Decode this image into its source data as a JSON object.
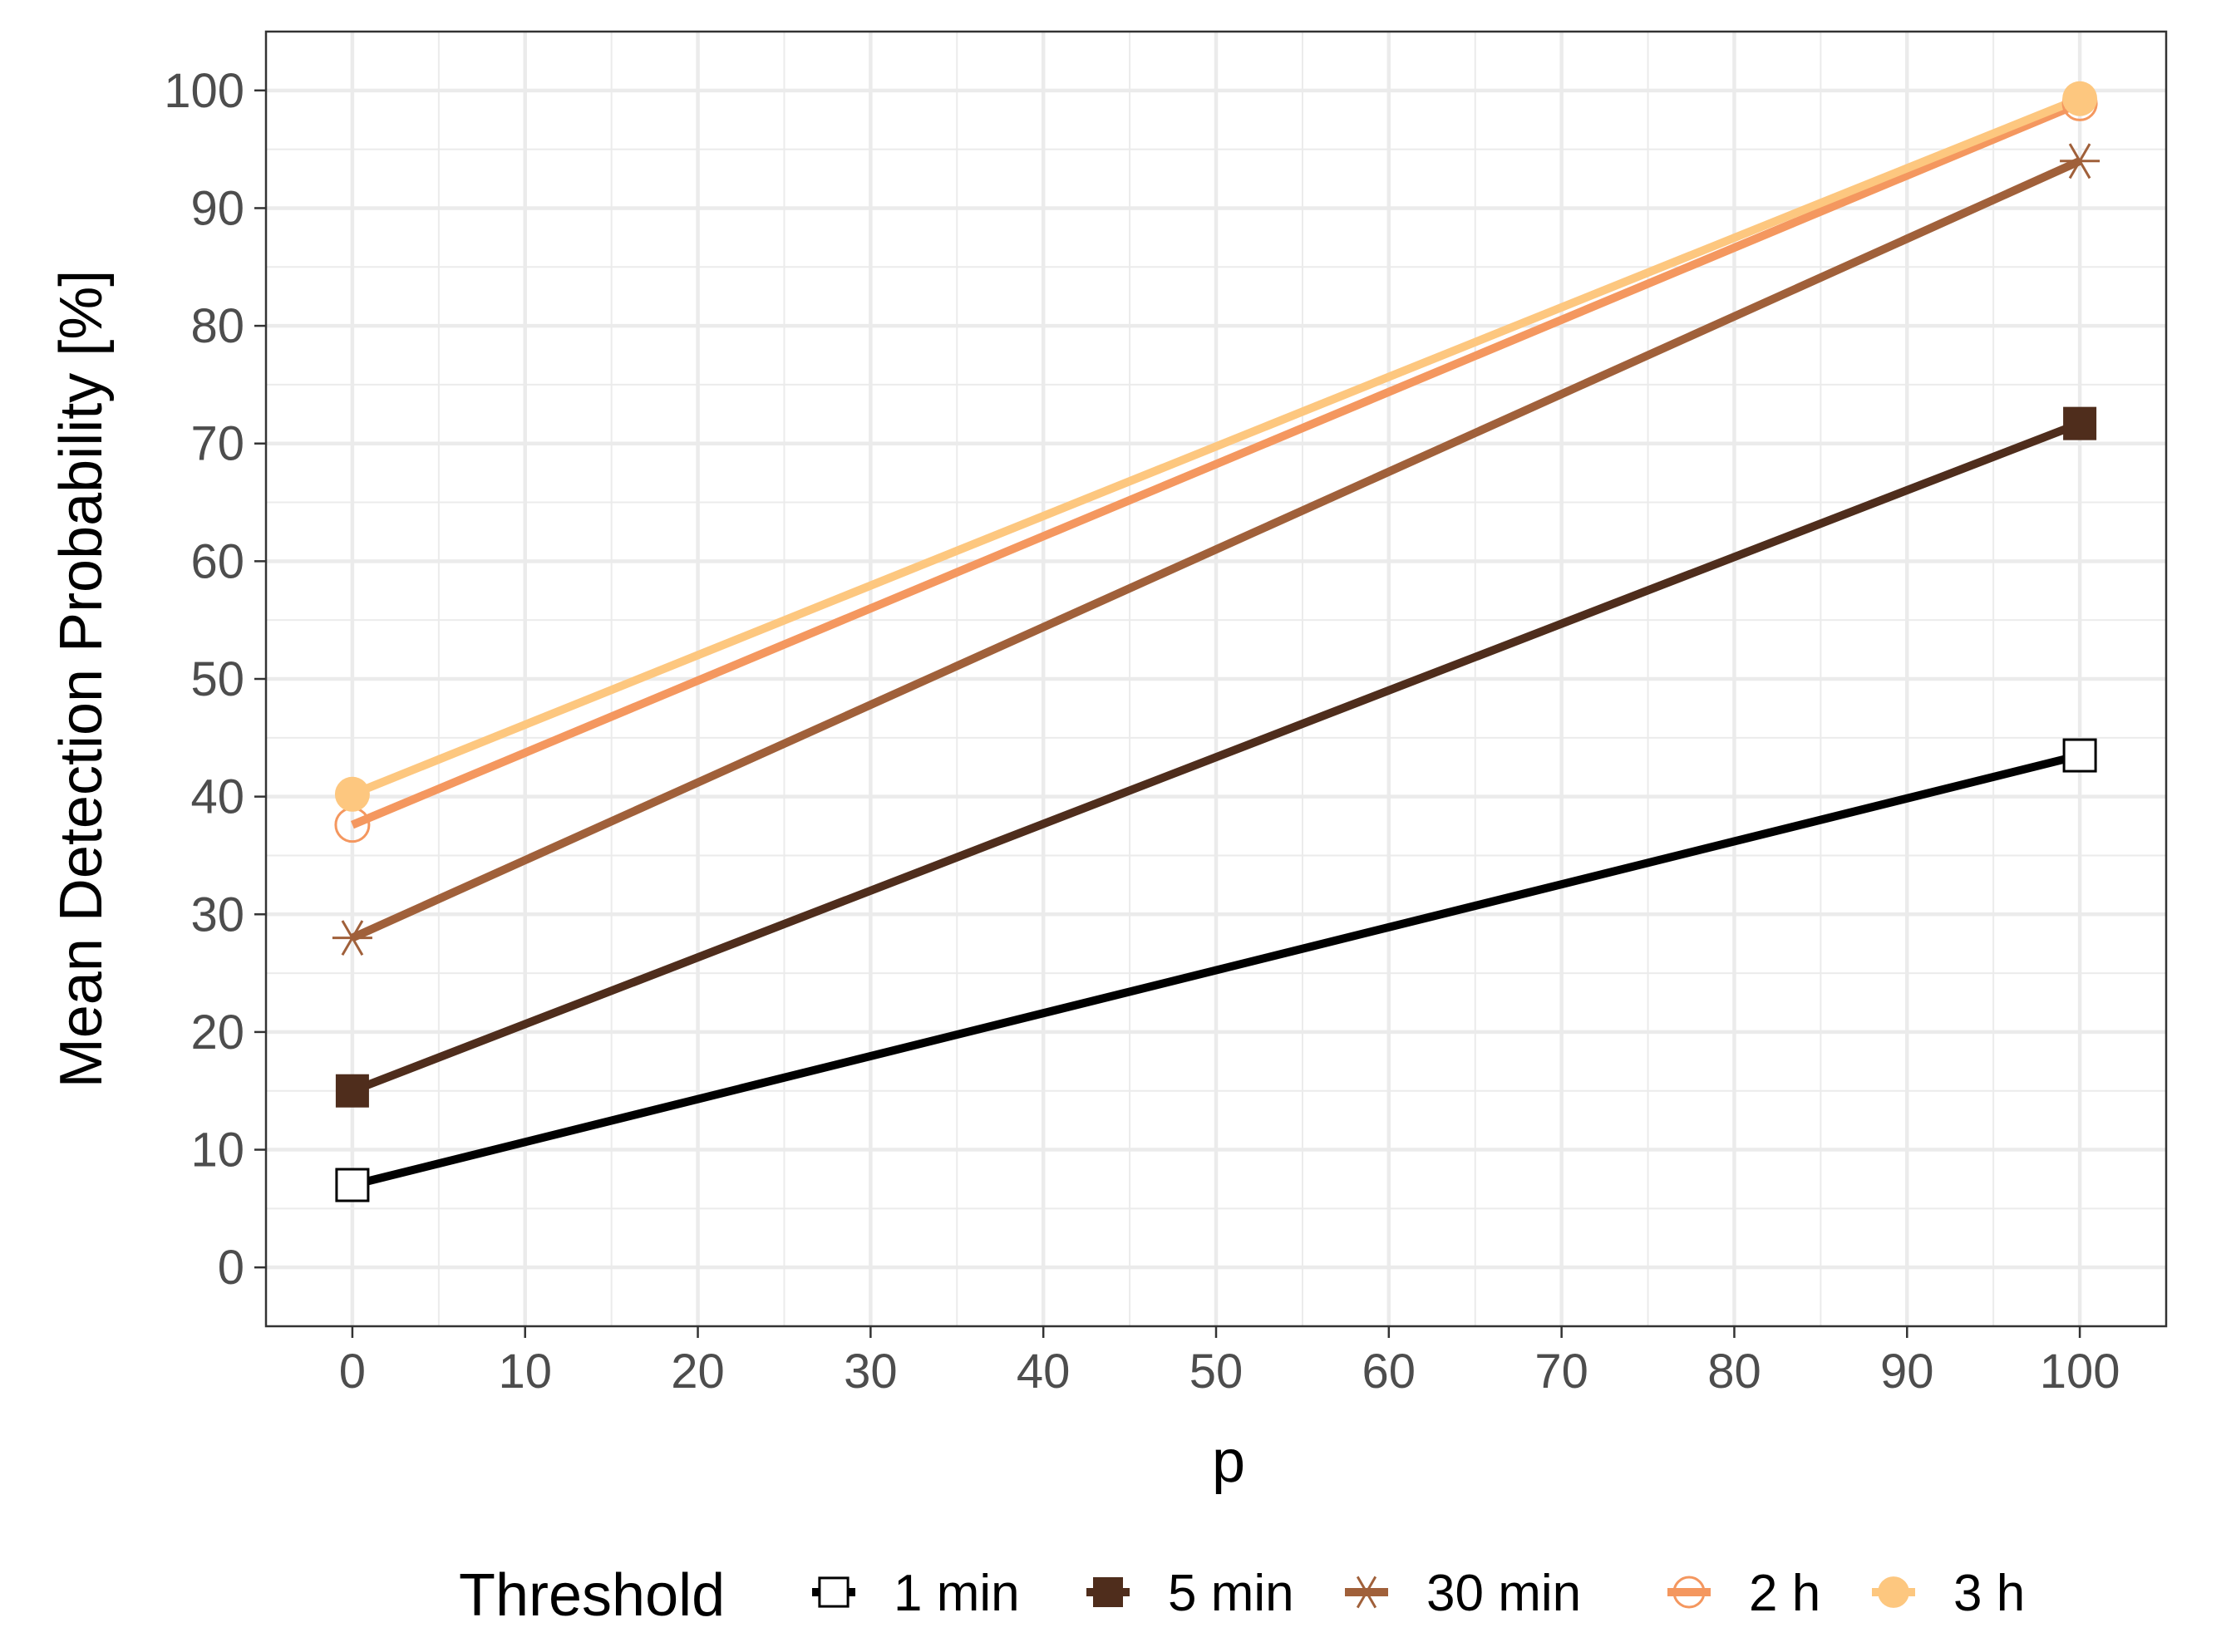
{
  "chart_data": {
    "type": "line",
    "title": "",
    "xlabel": "p",
    "ylabel": "Mean Detection Probability [%]",
    "xlim": [
      -5,
      105
    ],
    "ylim": [
      -5,
      105
    ],
    "x_ticks": [
      0,
      10,
      20,
      30,
      40,
      50,
      60,
      70,
      80,
      90,
      100
    ],
    "y_ticks": [
      0,
      10,
      20,
      30,
      40,
      50,
      60,
      70,
      80,
      90,
      100
    ],
    "grid": true,
    "legend": {
      "title": "Threshold",
      "position": "bottom"
    },
    "x": [
      0,
      100
    ],
    "series": [
      {
        "name": "1 min",
        "values": [
          7.0,
          43.5
        ],
        "color": "#000000",
        "marker": "open-square"
      },
      {
        "name": "5 min",
        "values": [
          15.0,
          71.7
        ],
        "color": "#4f2d1c",
        "marker": "filled-square"
      },
      {
        "name": "30 min",
        "values": [
          28.0,
          94.0
        ],
        "color": "#a0603a",
        "marker": "asterisk"
      },
      {
        "name": "2 h",
        "values": [
          37.6,
          98.9
        ],
        "color": "#f4975f",
        "marker": "open-circle"
      },
      {
        "name": "3 h",
        "values": [
          40.2,
          99.3
        ],
        "color": "#fdc77f",
        "marker": "filled-circle"
      }
    ]
  }
}
